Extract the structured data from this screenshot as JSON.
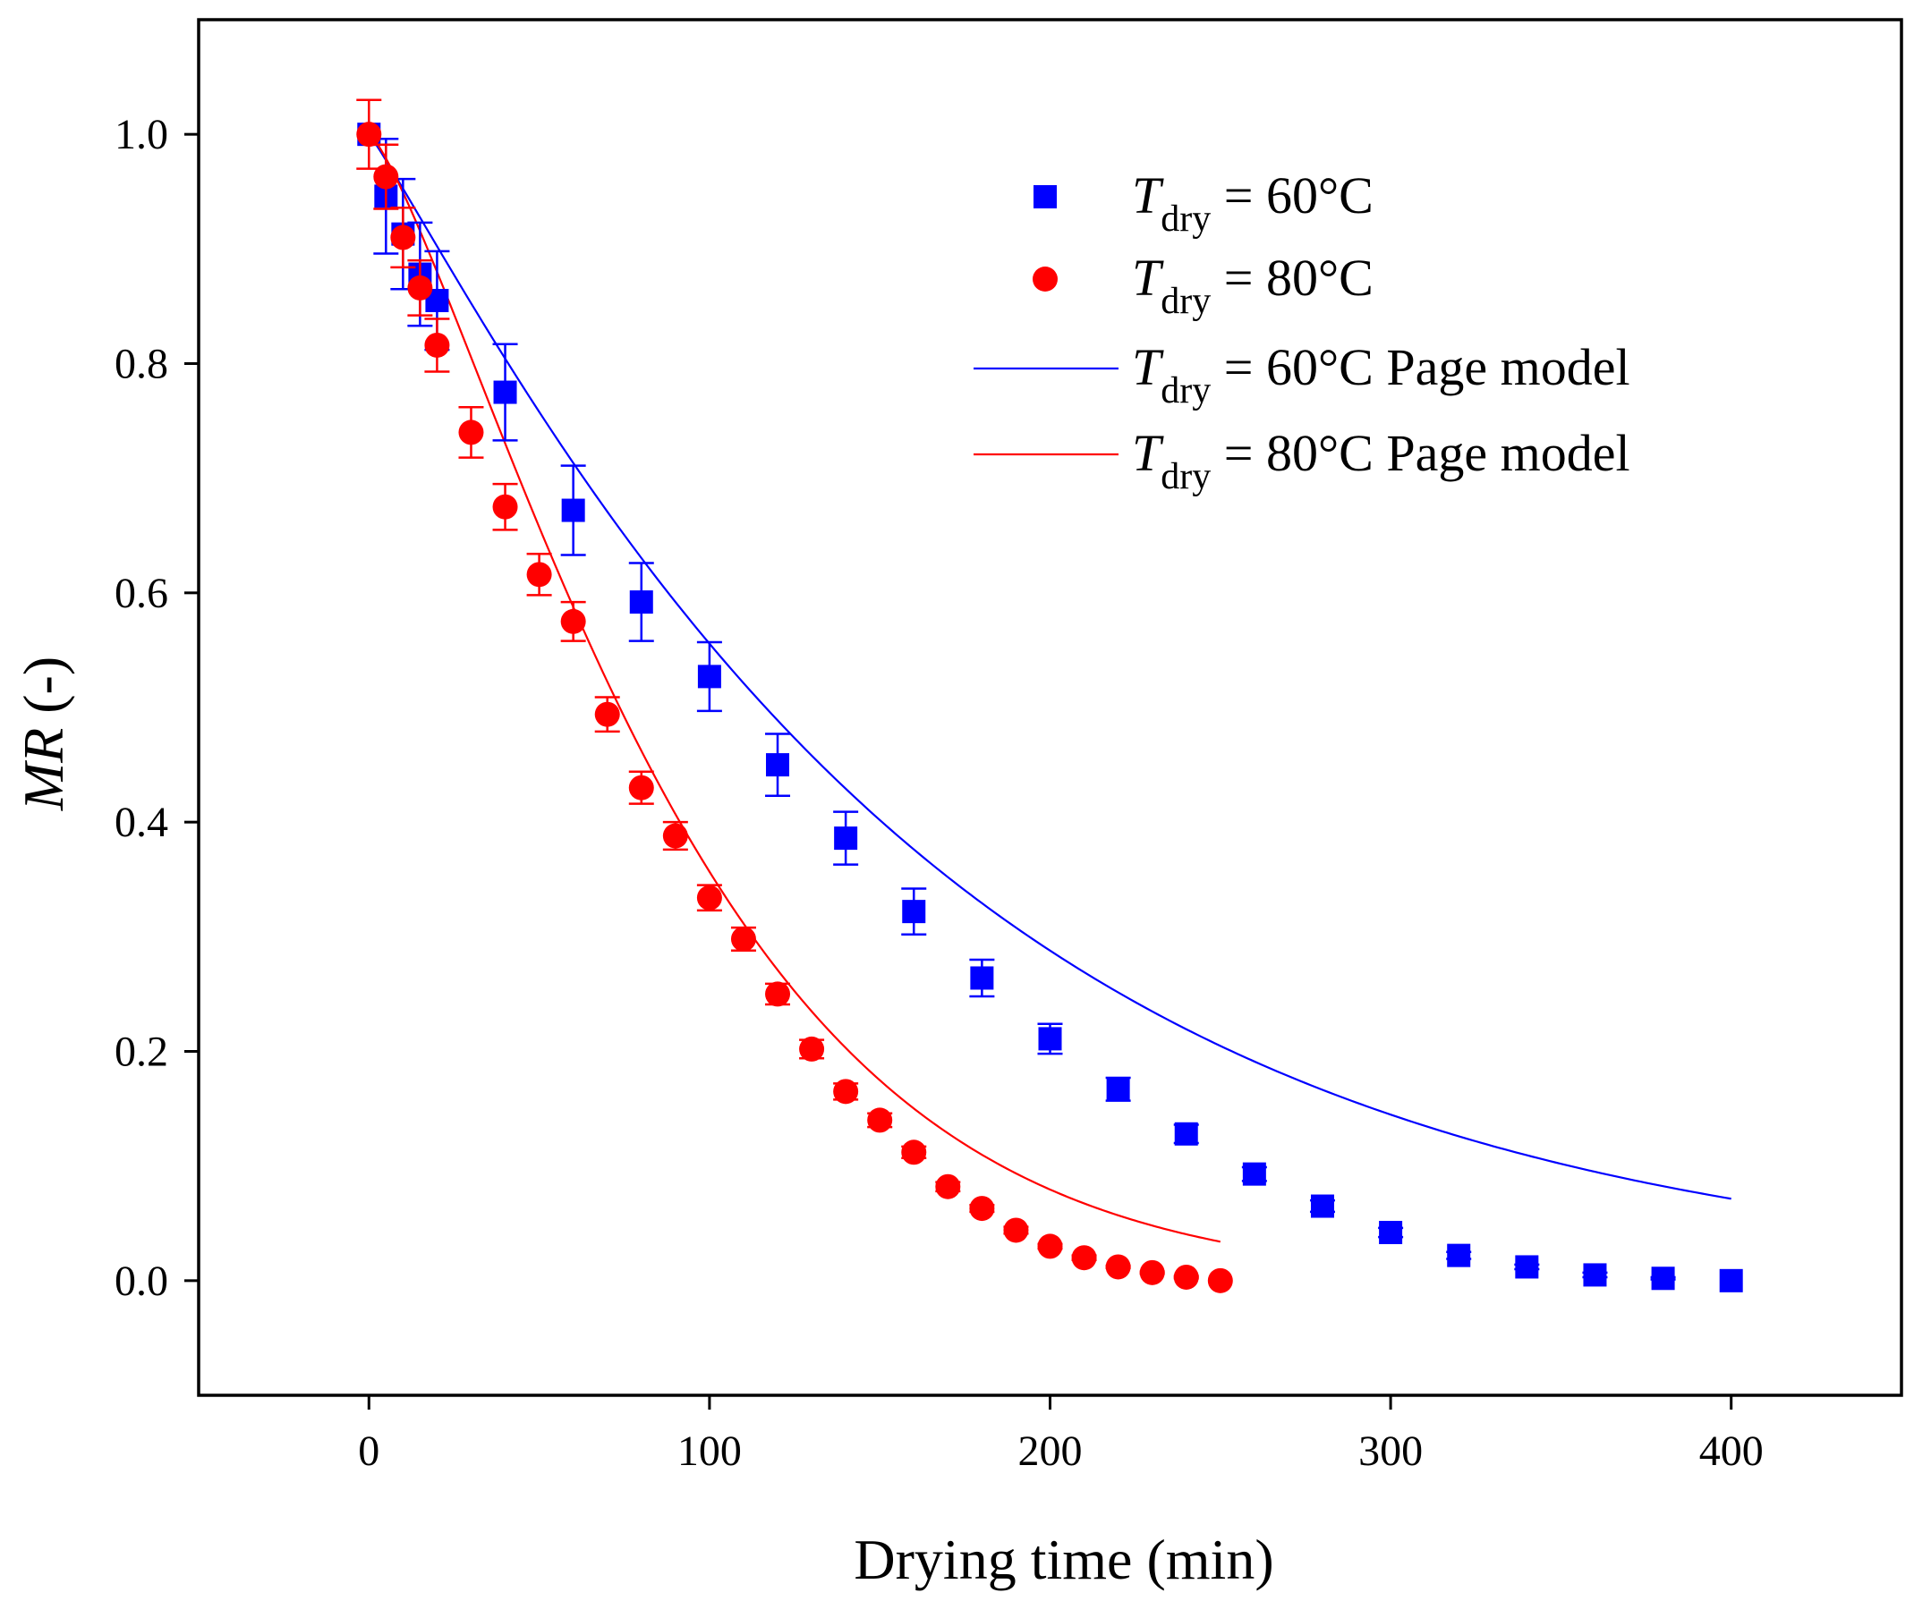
{
  "chart_data": {
    "type": "scatter",
    "xlabel": "Drying time (min)",
    "ylabel_italic": "MR",
    "ylabel_rest": " (-)",
    "xlim": [
      -50,
      450
    ],
    "ylim": [
      -0.1,
      1.1
    ],
    "xticks": [
      0,
      100,
      200,
      300,
      400
    ],
    "xtick_labels": [
      "0",
      "100",
      "200",
      "300",
      "400"
    ],
    "yticks": [
      0.0,
      0.2,
      0.4,
      0.6,
      0.8,
      1.0
    ],
    "ytick_labels": [
      "0.0",
      "0.2",
      "0.4",
      "0.6",
      "0.8",
      "1.0"
    ],
    "grid": false,
    "legend_position": "top-right",
    "series": [
      {
        "name": "T_dry = 60°C",
        "legend": {
          "italic": "T",
          "sub": "dry",
          "rest": " = 60°C"
        },
        "kind": "points",
        "marker": "square",
        "color": "#0000ff",
        "x": [
          0,
          5,
          10,
          15,
          20,
          40,
          60,
          80,
          100,
          120,
          140,
          160,
          180,
          200,
          220,
          240,
          260,
          280,
          300,
          320,
          340,
          360,
          380,
          400
        ],
        "y": [
          1.0,
          0.946,
          0.913,
          0.878,
          0.855,
          0.775,
          0.672,
          0.592,
          0.527,
          0.45,
          0.386,
          0.322,
          0.264,
          0.211,
          0.167,
          0.128,
          0.093,
          0.065,
          0.042,
          0.022,
          0.012,
          0.005,
          0.002,
          0.0
        ],
        "err": [
          0.0,
          0.05,
          0.048,
          0.045,
          0.043,
          0.042,
          0.039,
          0.034,
          0.03,
          0.027,
          0.023,
          0.02,
          0.016,
          0.013,
          0.01,
          0.008,
          0.006,
          0.005,
          0.004,
          0.003,
          0.002,
          0.002,
          0.001,
          0.0
        ]
      },
      {
        "name": "T_dry = 80°C",
        "legend": {
          "italic": "T",
          "sub": "dry",
          "rest": " = 80°C"
        },
        "kind": "points",
        "marker": "circle",
        "color": "#ff0000",
        "x": [
          0,
          5,
          10,
          15,
          20,
          30,
          40,
          50,
          60,
          70,
          80,
          90,
          100,
          110,
          120,
          130,
          140,
          150,
          160,
          170,
          180,
          190,
          200,
          210,
          220,
          230,
          240,
          250
        ],
        "y": [
          1.0,
          0.963,
          0.91,
          0.866,
          0.816,
          0.74,
          0.675,
          0.616,
          0.575,
          0.494,
          0.43,
          0.388,
          0.334,
          0.298,
          0.25,
          0.202,
          0.165,
          0.14,
          0.112,
          0.082,
          0.063,
          0.044,
          0.03,
          0.02,
          0.012,
          0.007,
          0.003,
          0.0
        ],
        "err": [
          0.03,
          0.028,
          0.026,
          0.024,
          0.023,
          0.022,
          0.02,
          0.018,
          0.017,
          0.015,
          0.014,
          0.012,
          0.011,
          0.01,
          0.009,
          0.008,
          0.007,
          0.006,
          0.005,
          0.004,
          0.003,
          0.003,
          0.002,
          0.002,
          0.001,
          0.001,
          0.001,
          0.0
        ]
      },
      {
        "name": "T_dry = 60°C Page model",
        "legend": {
          "italic": "T",
          "sub": "dry",
          "rest": " = 60°C Page model"
        },
        "kind": "line",
        "color": "#0000ff",
        "model": {
          "type": "page",
          "k": 0.004,
          "n": 1.0835,
          "x_start": 0,
          "x_end": 400
        }
      },
      {
        "name": "T_dry = 80°C Page model",
        "legend": {
          "italic": "T",
          "sub": "dry",
          "rest": " = 80°C Page model"
        },
        "kind": "line",
        "color": "#ff0000",
        "model": {
          "type": "page",
          "k": 0.00263,
          "n": 1.2966,
          "x_start": 0,
          "x_end": 250
        }
      }
    ]
  }
}
